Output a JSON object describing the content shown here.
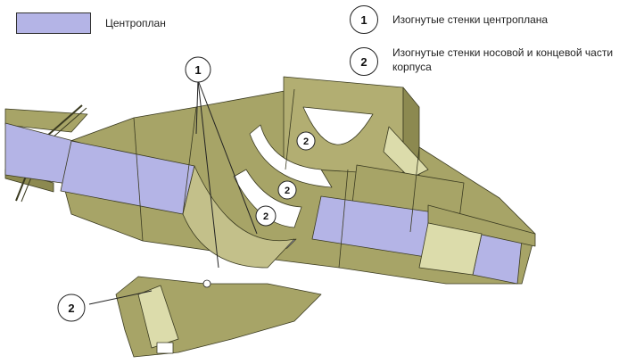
{
  "legend": {
    "centroplan_label": "Центроплан",
    "item1": {
      "number": "1",
      "text": "Изогнутые стенки центроплана"
    },
    "item2": {
      "number": "2",
      "text_line1": "Изогнутые стенки носовой и концевой части",
      "text_line2": "корпуса"
    }
  },
  "callouts": {
    "one": "1",
    "two": "2"
  },
  "colors": {
    "structure": "#a7a467",
    "structure_dark": "#8c8950",
    "structure_light": "#c3c08a",
    "centroplan": "#b4b4e6",
    "outline": "#3a3a20"
  }
}
